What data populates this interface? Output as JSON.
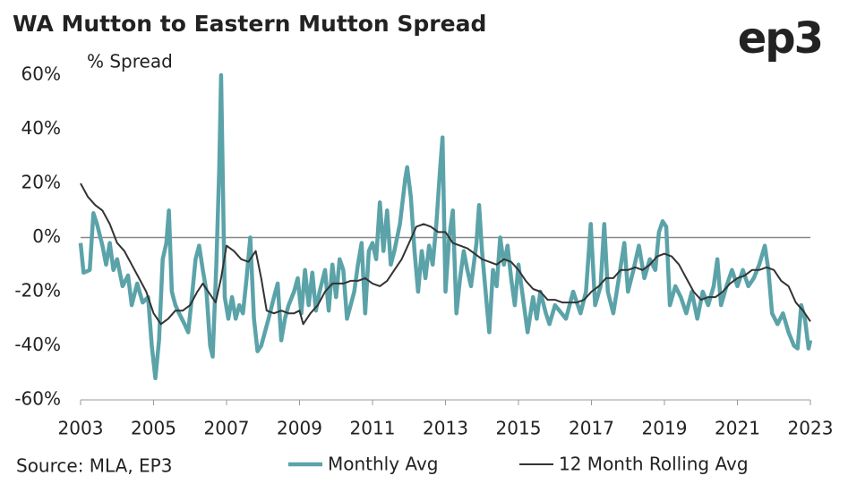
{
  "chart_data": {
    "type": "line",
    "title": "WA Mutton to Eastern Mutton Spread",
    "y_label": "% Spread",
    "source": "Source: MLA, EP3",
    "logo": "ep3",
    "xlim": [
      2003,
      2023
    ],
    "xticks": [
      2003,
      2005,
      2007,
      2009,
      2011,
      2013,
      2015,
      2017,
      2019,
      2021,
      2023
    ],
    "ylim": [
      -60,
      60
    ],
    "yticks": [
      {
        "value": -60,
        "label": "-60%"
      },
      {
        "value": -40,
        "label": "-40%"
      },
      {
        "value": -20,
        "label": "-20%"
      },
      {
        "value": 0,
        "label": "0%"
      },
      {
        "value": 20,
        "label": "20%"
      },
      {
        "value": 40,
        "label": "40%"
      },
      {
        "value": 60,
        "label": "60%"
      }
    ],
    "legend": "bottom",
    "series": [
      {
        "name": "Monthly Avg",
        "color": "#5ba3a9",
        "x": [
          2003.0,
          2003.08,
          2003.25,
          2003.35,
          2003.45,
          2003.6,
          2003.7,
          2003.8,
          2003.9,
          2004.0,
          2004.15,
          2004.3,
          2004.4,
          2004.55,
          2004.7,
          2004.85,
          2004.95,
          2005.05,
          2005.15,
          2005.25,
          2005.35,
          2005.42,
          2005.5,
          2005.6,
          2005.7,
          2005.85,
          2005.95,
          2006.05,
          2006.15,
          2006.25,
          2006.35,
          2006.45,
          2006.55,
          2006.62,
          2006.72,
          2006.8,
          2006.85,
          2006.95,
          2007.05,
          2007.15,
          2007.25,
          2007.35,
          2007.45,
          2007.55,
          2007.65,
          2007.75,
          2007.85,
          2007.95,
          2008.05,
          2008.15,
          2008.3,
          2008.4,
          2008.5,
          2008.6,
          2008.7,
          2008.85,
          2008.95,
          2009.05,
          2009.15,
          2009.25,
          2009.35,
          2009.45,
          2009.55,
          2009.7,
          2009.8,
          2009.9,
          2010.0,
          2010.1,
          2010.2,
          2010.3,
          2010.4,
          2010.5,
          2010.6,
          2010.7,
          2010.8,
          2010.9,
          2011.0,
          2011.1,
          2011.2,
          2011.3,
          2011.4,
          2011.5,
          2011.6,
          2011.75,
          2011.9,
          2011.95,
          2012.05,
          2012.15,
          2012.25,
          2012.35,
          2012.45,
          2012.55,
          2012.65,
          2012.75,
          2012.85,
          2012.92,
          2013.0,
          2013.1,
          2013.2,
          2013.3,
          2013.4,
          2013.5,
          2013.6,
          2013.7,
          2013.85,
          2013.92,
          2014.0,
          2014.1,
          2014.2,
          2014.3,
          2014.4,
          2014.5,
          2014.6,
          2014.7,
          2014.8,
          2014.9,
          2015.0,
          2015.1,
          2015.25,
          2015.4,
          2015.5,
          2015.6,
          2015.75,
          2015.85,
          2016.0,
          2016.3,
          2016.5,
          2016.7,
          2016.85,
          2016.98,
          2017.1,
          2017.25,
          2017.35,
          2017.45,
          2017.6,
          2017.75,
          2017.9,
          2018.0,
          2018.15,
          2018.3,
          2018.45,
          2018.6,
          2018.75,
          2018.85,
          2018.95,
          2019.05,
          2019.15,
          2019.3,
          2019.45,
          2019.6,
          2019.75,
          2019.9,
          2020.05,
          2020.2,
          2020.35,
          2020.45,
          2020.55,
          2020.7,
          2020.85,
          2021.0,
          2021.15,
          2021.3,
          2021.45,
          2021.6,
          2021.75,
          2021.85,
          2021.95,
          2022.1,
          2022.25,
          2022.4,
          2022.55,
          2022.65,
          2022.75,
          2022.85,
          2022.95,
          2023.0
        ],
        "values": [
          -2,
          -13,
          -12,
          9,
          5,
          -3,
          -10,
          -2,
          -12,
          -8,
          -18,
          -14,
          -25,
          -17,
          -24,
          -22,
          -40,
          -52,
          -38,
          -8,
          -2,
          10,
          -20,
          -25,
          -28,
          -32,
          -35,
          -22,
          -8,
          -3,
          -12,
          -20,
          -40,
          -44,
          -10,
          25,
          60,
          -22,
          -30,
          -22,
          -30,
          -25,
          -28,
          -15,
          0,
          -30,
          -42,
          -40,
          -35,
          -30,
          -22,
          -17,
          -38,
          -30,
          -25,
          -20,
          -15,
          -28,
          -12,
          -25,
          -13,
          -27,
          -20,
          -12,
          -27,
          -10,
          -22,
          -8,
          -12,
          -30,
          -25,
          -20,
          -10,
          -2,
          -28,
          -5,
          -2,
          -8,
          13,
          -5,
          10,
          -10,
          -5,
          5,
          22,
          26,
          15,
          -5,
          -20,
          -5,
          -15,
          -3,
          -10,
          5,
          25,
          37,
          -20,
          0,
          10,
          -28,
          -15,
          -5,
          -12,
          -18,
          -2,
          12,
          -5,
          -20,
          -35,
          -12,
          -18,
          0,
          -10,
          -3,
          -15,
          -25,
          -10,
          -20,
          -35,
          -22,
          -30,
          -20,
          -28,
          -32,
          -25,
          -30,
          -20,
          -28,
          -20,
          5,
          -25,
          -18,
          5,
          -20,
          -28,
          -15,
          -2,
          -20,
          -12,
          -3,
          -15,
          -8,
          -12,
          2,
          6,
          4,
          -25,
          -18,
          -22,
          -28,
          -20,
          -30,
          -20,
          -25,
          -18,
          -8,
          -25,
          -18,
          -12,
          -18,
          -12,
          -18,
          -15,
          -10,
          -3,
          -12,
          -28,
          -32,
          -28,
          -35,
          -40,
          -41,
          -25,
          -30,
          -41,
          -38
        ]
      },
      {
        "name": "12 Month Rolling Avg",
        "color": "#333333",
        "x": [
          2003.0,
          2003.2,
          2003.4,
          2003.6,
          2003.8,
          2004.0,
          2004.2,
          2004.4,
          2004.6,
          2004.8,
          2005.0,
          2005.2,
          2005.4,
          2005.6,
          2005.8,
          2006.0,
          2006.2,
          2006.35,
          2006.5,
          2006.7,
          2006.85,
          2007.0,
          2007.2,
          2007.4,
          2007.6,
          2007.8,
          2007.95,
          2008.1,
          2008.3,
          2008.5,
          2008.7,
          2008.85,
          2009.0,
          2009.1,
          2009.3,
          2009.5,
          2009.7,
          2009.9,
          2010.2,
          2010.4,
          2010.6,
          2010.8,
          2011.0,
          2011.2,
          2011.4,
          2011.6,
          2011.8,
          2012.0,
          2012.2,
          2012.4,
          2012.6,
          2012.8,
          2013.0,
          2013.2,
          2013.4,
          2013.6,
          2013.8,
          2014.0,
          2014.2,
          2014.4,
          2014.6,
          2014.8,
          2015.0,
          2015.2,
          2015.4,
          2015.6,
          2015.8,
          2016.0,
          2016.2,
          2016.4,
          2016.6,
          2016.8,
          2017.0,
          2017.2,
          2017.4,
          2017.6,
          2017.8,
          2018.0,
          2018.2,
          2018.4,
          2018.6,
          2018.8,
          2019.0,
          2019.2,
          2019.4,
          2019.6,
          2019.8,
          2020.0,
          2020.2,
          2020.4,
          2020.6,
          2020.8,
          2021.0,
          2021.2,
          2021.4,
          2021.6,
          2021.8,
          2022.0,
          2022.2,
          2022.4,
          2022.6,
          2022.8,
          2023.0
        ],
        "values": [
          20,
          15,
          12,
          10,
          5,
          -2,
          -5,
          -10,
          -15,
          -20,
          -28,
          -32,
          -30,
          -27,
          -27,
          -25,
          -20,
          -17,
          -20,
          -24,
          -15,
          -3,
          -5,
          -8,
          -9,
          -5,
          -15,
          -27,
          -28,
          -27,
          -28,
          -28,
          -27,
          -32,
          -28,
          -25,
          -20,
          -17,
          -17,
          -16,
          -16,
          -15,
          -17,
          -18,
          -16,
          -12,
          -8,
          -2,
          4,
          5,
          4,
          2,
          2,
          -2,
          -3,
          -4,
          -6,
          -8,
          -9,
          -10,
          -8,
          -9,
          -12,
          -16,
          -19,
          -20,
          -23,
          -23,
          -24,
          -24,
          -24,
          -23,
          -20,
          -18,
          -15,
          -15,
          -12,
          -12,
          -11,
          -12,
          -10,
          -7,
          -6,
          -7,
          -10,
          -15,
          -20,
          -23,
          -22,
          -22,
          -20,
          -17,
          -15,
          -14,
          -12,
          -12,
          -11,
          -12,
          -16,
          -18,
          -24,
          -27,
          -31
        ]
      }
    ]
  }
}
